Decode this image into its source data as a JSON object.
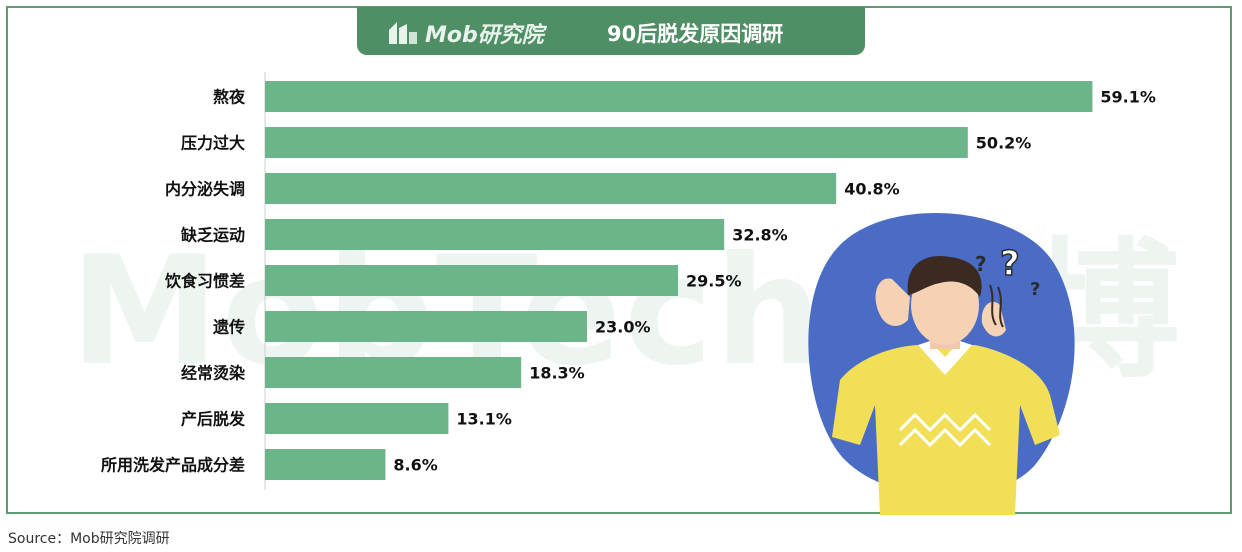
{
  "header": {
    "logo_text": "Mob研究院",
    "title": "90后脱发原因调研"
  },
  "watermark": "MobTech 袤博",
  "source": "Source：Mob研究院调研",
  "colors": {
    "bar": "#6cb58a",
    "header": "#4f8f66",
    "frame": "#5e9b73"
  },
  "chart_data": {
    "type": "bar",
    "orientation": "horizontal",
    "title": "90后脱发原因调研",
    "categories": [
      "熬夜",
      "压力过大",
      "内分泌失调",
      "缺乏运动",
      "饮食习惯差",
      "遗传",
      "经常烫染",
      "产后脱发",
      "所用洗发产品成分差"
    ],
    "values": [
      59.1,
      50.2,
      40.8,
      32.8,
      29.5,
      23.0,
      18.3,
      13.1,
      8.6
    ],
    "value_labels": [
      "59.1%",
      "50.2%",
      "40.8%",
      "32.8%",
      "29.5%",
      "23.0%",
      "18.3%",
      "13.1%",
      "8.6%"
    ],
    "unit": "%",
    "xlim": [
      0,
      60
    ],
    "grid": false,
    "legend": "none"
  }
}
